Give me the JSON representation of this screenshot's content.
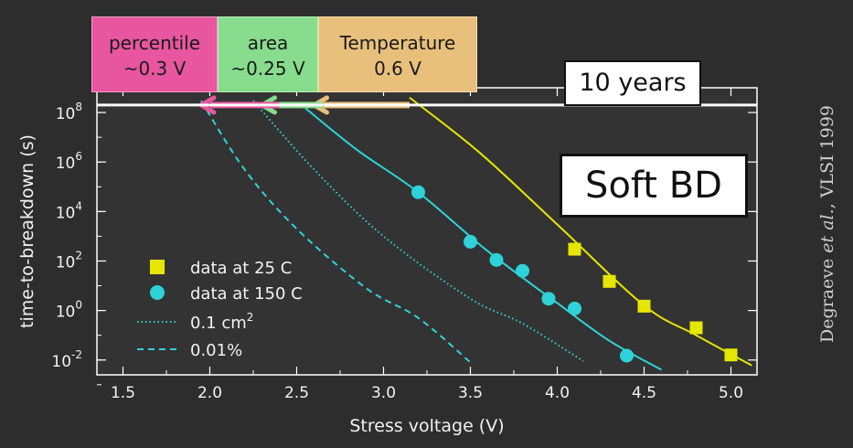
{
  "chart_data": {
    "type": "scatter",
    "xlabel": "Stress voltage (V)",
    "ylabel": "time-to-breakdown (s)",
    "xlim": [
      1.35,
      5.15
    ],
    "ylim_log10": [
      -2.6,
      9.0
    ],
    "x_ticks": [
      "1.5",
      "2.0",
      "2.5",
      "3.0",
      "3.5",
      "4.0",
      "4.5",
      "5.0"
    ],
    "y_ticks": [
      {
        "base": "10",
        "exp": "8"
      },
      {
        "base": "10",
        "exp": "6"
      },
      {
        "base": "10",
        "exp": "4"
      },
      {
        "base": "10",
        "exp": "2"
      },
      {
        "base": "10",
        "exp": "0"
      },
      {
        "base": "10",
        "exp": "-2"
      }
    ],
    "y_scale": "log",
    "series": [
      {
        "name": "data at 25 C",
        "marker": "square",
        "color": "#e6e600",
        "points": [
          [
            4.1,
            300
          ],
          [
            4.3,
            15
          ],
          [
            4.5,
            1.5
          ],
          [
            4.8,
            0.2
          ],
          [
            5.0,
            0.016
          ]
        ]
      },
      {
        "name": "data at 150 C",
        "marker": "circle",
        "color": "#2ed3d9",
        "points": [
          [
            3.2,
            60000
          ],
          [
            3.5,
            600
          ],
          [
            3.65,
            110
          ],
          [
            3.8,
            40
          ],
          [
            3.95,
            3
          ],
          [
            4.1,
            1.2
          ],
          [
            4.4,
            0.015
          ]
        ]
      },
      {
        "name": "0.1 cm",
        "name_superscript": "2",
        "style": "dotted",
        "color": "#2ed3d9",
        "points": [
          [
            2.25,
            300000000
          ],
          [
            2.6,
            500000
          ],
          [
            3.0,
            1000
          ],
          [
            3.5,
            3
          ],
          [
            3.8,
            0.3
          ],
          [
            4.15,
            0.009
          ]
        ]
      },
      {
        "name": "0.01%",
        "style": "dashed",
        "color": "#2ed3d9",
        "points": [
          [
            1.95,
            300000000
          ],
          [
            2.2,
            500000
          ],
          [
            2.5,
            2000
          ],
          [
            2.9,
            8
          ],
          [
            3.2,
            0.5
          ],
          [
            3.5,
            0.008
          ]
        ]
      }
    ],
    "fit_lines": [
      {
        "color": "#2ed3d9",
        "points": [
          [
            2.55,
            150000000
          ],
          [
            2.85,
            3000000
          ],
          [
            3.2,
            60000
          ],
          [
            3.6,
            250
          ],
          [
            4.0,
            2
          ],
          [
            4.3,
            0.06
          ],
          [
            4.6,
            0.004
          ]
        ]
      },
      {
        "color": "#e6e600",
        "points": [
          [
            3.15,
            400000000
          ],
          [
            3.55,
            2500000
          ],
          [
            4.0,
            3000
          ],
          [
            4.5,
            1.6
          ],
          [
            4.8,
            0.1
          ],
          [
            5.12,
            0.006
          ]
        ]
      }
    ],
    "reference_line": {
      "label": "10 years",
      "y": 200000000
    },
    "arrows": [
      {
        "color": "#e8c07c",
        "from_x": 3.15,
        "to_x": 2.6
      },
      {
        "color": "#88dc8d",
        "from_x": 2.65,
        "to_x": 2.3
      },
      {
        "color": "#e8569f",
        "from_x": 2.4,
        "to_x": 1.95
      }
    ],
    "annotations": {
      "percentile": {
        "line1": "percentile",
        "line2": "~0.3 V",
        "color": "#e8569f"
      },
      "area": {
        "line1": "area",
        "line2": "~0.25 V",
        "color": "#88dc8d"
      },
      "temperature": {
        "line1": "Temperature",
        "line2": "0.6 V",
        "color": "#e8c07c"
      },
      "ten_years": "10 years",
      "soft_bd": "Soft BD"
    }
  },
  "citation": {
    "author": "Degraeve ",
    "etal": "et al.",
    "rest": ", VLSI 1999"
  }
}
